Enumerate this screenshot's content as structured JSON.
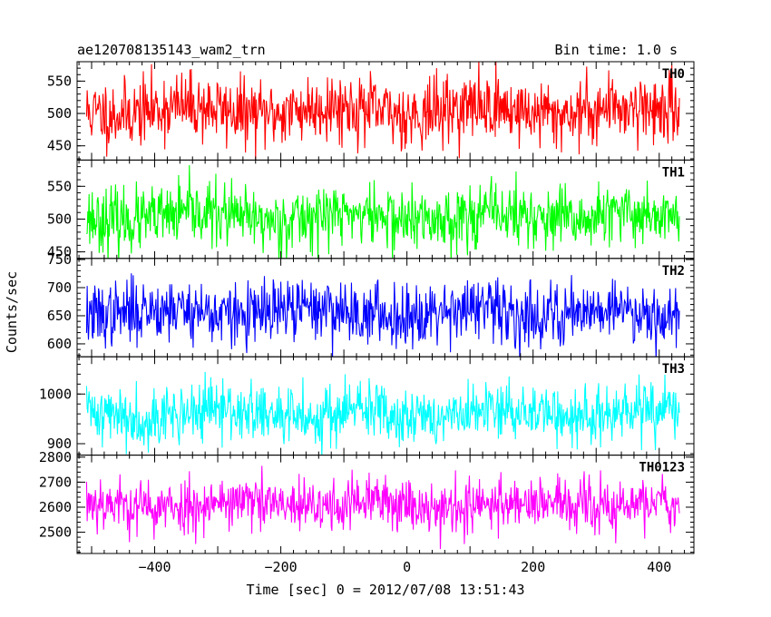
{
  "chart_data": {
    "type": "line",
    "title_left": "ae120708135143_wam2_trn",
    "title_right": "Bin time: 1.0 s",
    "xlabel": "Time [sec] 0 = 2012/07/08 13:51:43",
    "ylabel": "Counts/sec",
    "xlim": [
      -523,
      455
    ],
    "x_range": [
      -508,
      432
    ],
    "x_ticks": [
      -400,
      -200,
      0,
      200,
      400
    ],
    "x_tick_labels": [
      "−400",
      "−200",
      "0",
      "200",
      "400"
    ],
    "grid": false,
    "panels": [
      {
        "label": "TH0",
        "color": "#ff0000",
        "ylim": [
          428,
          580
        ],
        "y_ticks": [
          450,
          500,
          550
        ],
        "mean": 505,
        "spread": 26,
        "seed": 11
      },
      {
        "label": "TH1",
        "color": "#00ff00",
        "ylim": [
          440,
          590
        ],
        "y_ticks": [
          450,
          500,
          550
        ],
        "mean": 503,
        "spread": 24,
        "seed": 23
      },
      {
        "label": "TH2",
        "color": "#0000ff",
        "ylim": [
          577,
          752
        ],
        "y_ticks": [
          600,
          650,
          700,
          750
        ],
        "mean": 657,
        "spread": 28,
        "seed": 37
      },
      {
        "label": "TH3",
        "color": "#00ffff",
        "ylim": [
          877,
          1075
        ],
        "y_ticks": [
          900,
          1000
        ],
        "mean": 960,
        "spread": 30,
        "seed": 41
      },
      {
        "label": "TH0123",
        "color": "#ff00ff",
        "ylim": [
          2415,
          2808
        ],
        "y_ticks": [
          2500,
          2600,
          2700,
          2800
        ],
        "mean": 2610,
        "spread": 55,
        "seed": 53
      }
    ]
  }
}
